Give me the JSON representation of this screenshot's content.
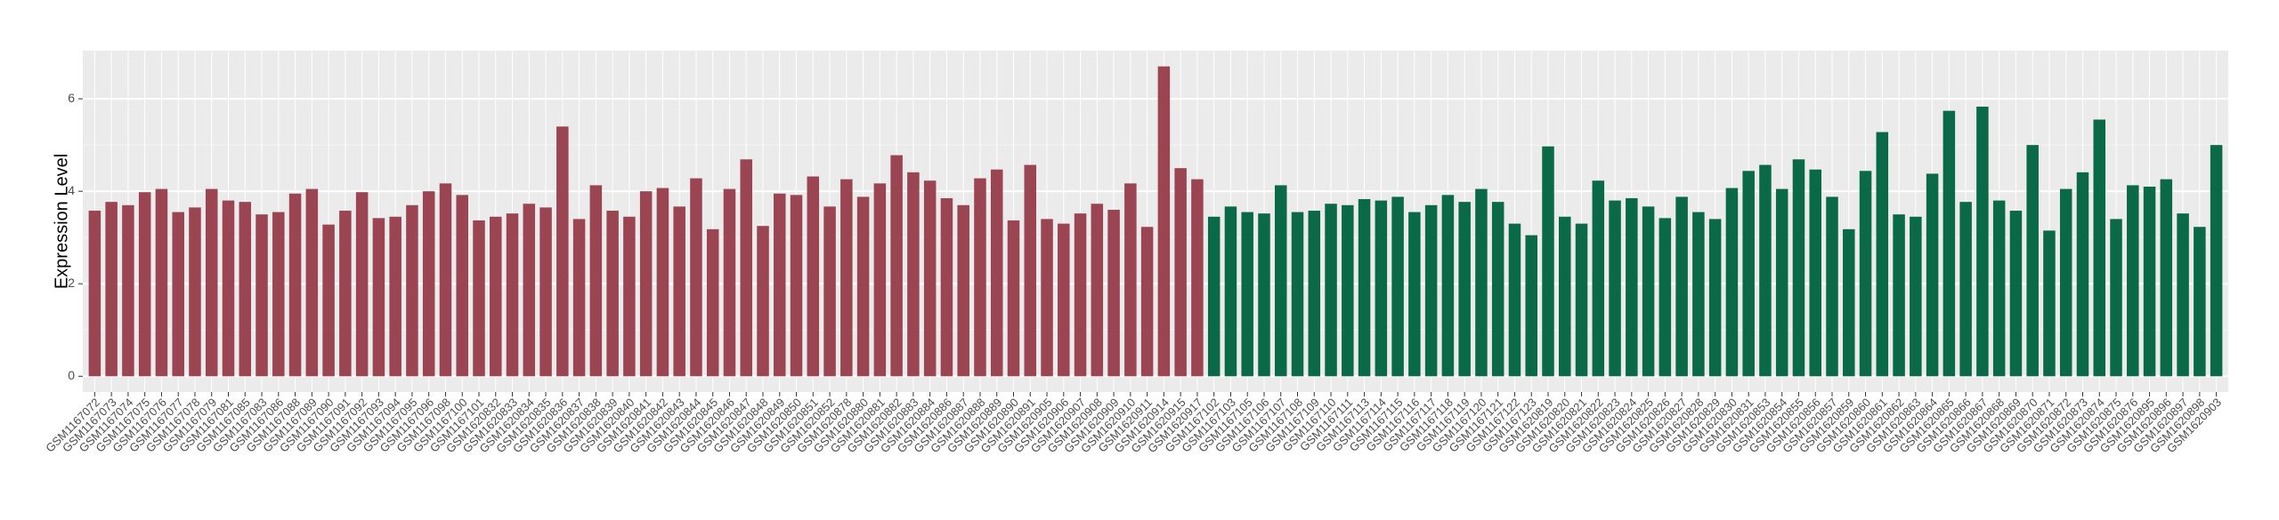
{
  "chart_data": {
    "type": "bar",
    "ylabel": "Expression Level",
    "ylim": [
      -0.34,
      7.04
    ],
    "yticks": [
      0,
      2,
      4,
      6
    ],
    "grid": true,
    "groups": [
      {
        "color": "#9b4452",
        "categories": [
          "GSM1167072",
          "GSM1167073",
          "GSM1167074",
          "GSM1167075",
          "GSM1167076",
          "GSM1167077",
          "GSM1167078",
          "GSM1167079",
          "GSM1167081",
          "GSM1167085",
          "GSM1167083",
          "GSM1167086",
          "GSM1167088",
          "GSM1167089",
          "GSM1167090",
          "GSM1167091",
          "GSM1167092",
          "GSM1167093",
          "GSM1167094",
          "GSM1167095",
          "GSM1167096",
          "GSM1167098",
          "GSM1167100",
          "GSM1167101",
          "GSM1620832",
          "GSM1620833",
          "GSM1620834",
          "GSM1620835",
          "GSM1620836",
          "GSM1620837",
          "GSM1620838",
          "GSM1620839",
          "GSM1620840",
          "GSM1620841",
          "GSM1620842",
          "GSM1620843",
          "GSM1620844",
          "GSM1620845",
          "GSM1620846",
          "GSM1620847",
          "GSM1620848",
          "GSM1620849",
          "GSM1620850",
          "GSM1620851",
          "GSM1620852",
          "GSM1620878",
          "GSM1620880",
          "GSM1620881",
          "GSM1620882",
          "GSM1620883",
          "GSM1620884",
          "GSM1620886",
          "GSM1620887",
          "GSM1620888",
          "GSM1620889",
          "GSM1620890",
          "GSM1620891",
          "GSM1620905",
          "GSM1620906",
          "GSM1620907",
          "GSM1620908",
          "GSM1620909",
          "GSM1620910",
          "GSM1620911",
          "GSM1620914",
          "GSM1620915",
          "GSM1620917"
        ],
        "values": [
          3.58,
          3.77,
          3.7,
          3.98,
          4.05,
          3.55,
          3.65,
          4.05,
          3.8,
          3.77,
          3.5,
          3.55,
          3.95,
          4.05,
          3.28,
          3.58,
          3.98,
          3.42,
          3.45,
          3.7,
          4.0,
          4.17,
          3.92,
          3.37,
          3.45,
          3.52,
          3.73,
          3.65,
          5.4,
          3.4,
          4.13,
          3.58,
          3.45,
          4.0,
          4.07,
          3.67,
          4.28,
          3.18,
          4.05,
          4.69,
          3.25,
          3.95,
          3.92,
          4.32,
          3.67,
          4.26,
          3.88,
          4.17,
          4.78,
          4.41,
          4.23,
          3.85,
          3.7,
          4.28,
          4.47,
          3.37,
          4.57,
          3.4,
          3.3,
          3.52,
          3.73,
          3.6,
          4.17,
          3.23,
          6.7,
          4.5,
          4.26
        ]
      },
      {
        "color": "#0a6a48",
        "categories": [
          "GSM1167102",
          "GSM1167103",
          "GSM1167105",
          "GSM1167106",
          "GSM1167107",
          "GSM1167108",
          "GSM1167109",
          "GSM1167110",
          "GSM1167111",
          "GSM1167113",
          "GSM1167114",
          "GSM1167115",
          "GSM1167116",
          "GSM1167117",
          "GSM1167118",
          "GSM1167119",
          "GSM1167120",
          "GSM1167121",
          "GSM1167122",
          "GSM1167123",
          "GSM1620819",
          "GSM1620820",
          "GSM1620821",
          "GSM1620822",
          "GSM1620823",
          "GSM1620824",
          "GSM1620825",
          "GSM1620826",
          "GSM1620827",
          "GSM1620828",
          "GSM1620829",
          "GSM1620830",
          "GSM1620831",
          "GSM1620853",
          "GSM1620854",
          "GSM1620855",
          "GSM1620856",
          "GSM1620857",
          "GSM1620859",
          "GSM1620860",
          "GSM1620861",
          "GSM1620862",
          "GSM1620863",
          "GSM1620864",
          "GSM1620865",
          "GSM1620866",
          "GSM1620867",
          "GSM1620868",
          "GSM1620869",
          "GSM1620870",
          "GSM1620871",
          "GSM1620872",
          "GSM1620873",
          "GSM1620874",
          "GSM1620875",
          "GSM1620876",
          "GSM1620895",
          "GSM1620896",
          "GSM1620897",
          "GSM1620898",
          "GSM1620903"
        ],
        "values": [
          3.45,
          3.67,
          3.55,
          3.52,
          4.13,
          3.55,
          3.58,
          3.73,
          3.7,
          3.83,
          3.8,
          3.88,
          3.55,
          3.7,
          3.92,
          3.77,
          4.05,
          3.77,
          3.3,
          3.05,
          4.97,
          3.45,
          3.3,
          4.23,
          3.8,
          3.85,
          3.67,
          3.42,
          3.88,
          3.55,
          3.4,
          4.07,
          4.44,
          4.57,
          4.05,
          4.69,
          4.47,
          3.88,
          3.18,
          4.44,
          5.28,
          3.5,
          3.45,
          4.38,
          5.74,
          3.77,
          5.83,
          3.8,
          3.58,
          5.0,
          3.15,
          4.05,
          4.41,
          5.55,
          3.4,
          4.13,
          4.1,
          4.26,
          3.52,
          3.23,
          5.0
        ]
      }
    ]
  }
}
